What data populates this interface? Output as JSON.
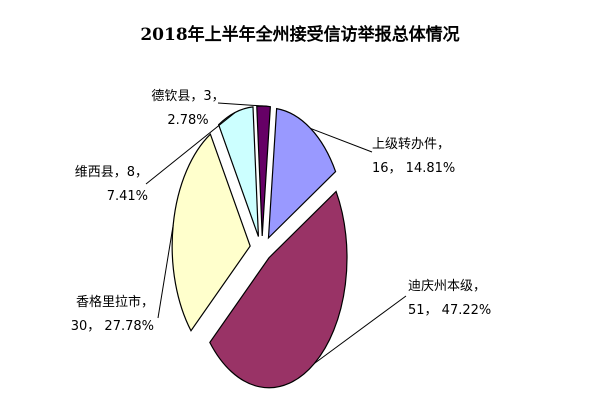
{
  "chart_data": {
    "type": "pie",
    "title": "2018年上半年全州接受信访举报总体情况",
    "slices": [
      {
        "name": "上级转办件",
        "value": 16,
        "percent": "14.81%",
        "color": "#9999ff",
        "sep": "，",
        "label_line1": "上级转办件，",
        "label_line2": "16， 14.81%"
      },
      {
        "name": "迪庆州本级",
        "value": 51,
        "percent": "47.22%",
        "color": "#993366",
        "sep": "，",
        "label_line1": "迪庆州本级，",
        "label_line2": "51， 47.22%"
      },
      {
        "name": "香格里拉市",
        "value": 30,
        "percent": "27.78%",
        "color": "#ffffcc",
        "sep": "，",
        "label_line1": "香格里拉市，",
        "label_line2": "30， 27.78%"
      },
      {
        "name": "维西县",
        "value": 8,
        "percent": "7.41%",
        "color": "#ccffff",
        "sep": "，",
        "label_line1": "维西县，8，",
        "label_line2": "7.41%"
      },
      {
        "name": "德钦县",
        "value": 3,
        "percent": "2.78%",
        "color": "#660066",
        "sep": "，",
        "label_line1": "德钦县，3，",
        "label_line2": "2.78%"
      }
    ],
    "legend": "none",
    "exploded": true
  }
}
